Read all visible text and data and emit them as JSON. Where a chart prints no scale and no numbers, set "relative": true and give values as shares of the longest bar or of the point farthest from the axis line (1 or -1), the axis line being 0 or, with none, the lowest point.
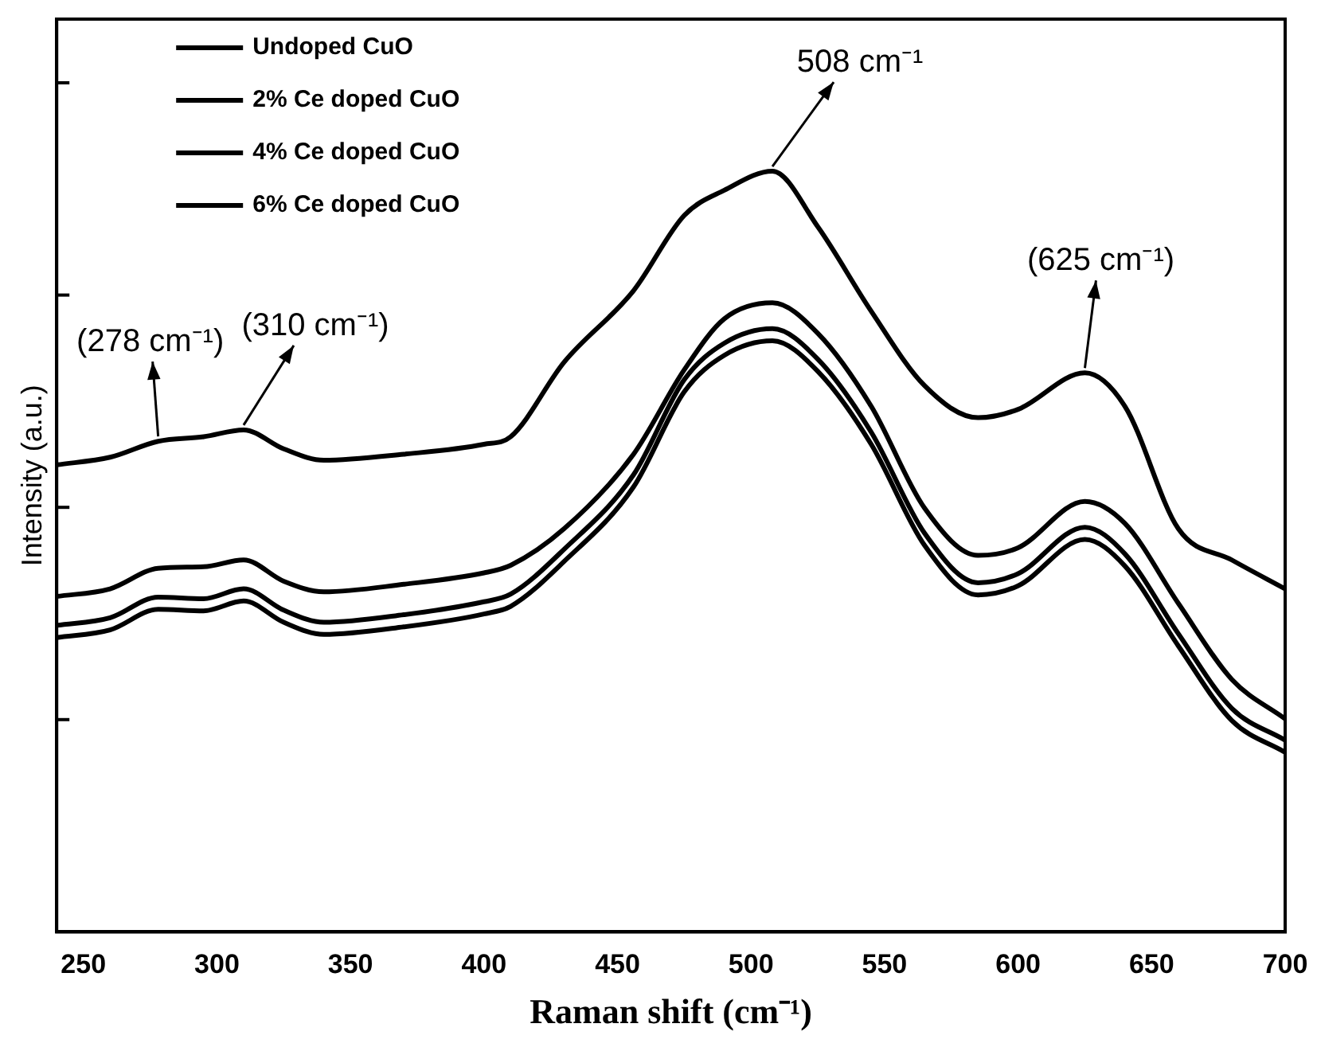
{
  "chart_data": {
    "type": "line",
    "relative": true,
    "xlabel": "Raman shift (cm⁻¹)",
    "ylabel": "Intensity (a.u.)",
    "x": [
      240,
      260,
      278,
      295,
      310,
      325,
      340,
      370,
      400,
      410,
      430,
      456,
      475,
      490,
      508,
      525,
      545,
      565,
      585,
      600,
      625,
      640,
      660,
      680,
      700
    ],
    "xlim": [
      240,
      700
    ],
    "xticks": [
      250,
      300,
      350,
      400,
      450,
      500,
      550,
      600,
      650,
      700
    ],
    "series": [
      {
        "name": "Undoped CuO",
        "color": "#000000",
        "values": [
          0.614,
          0.624,
          0.645,
          0.651,
          0.66,
          0.635,
          0.62,
          0.628,
          0.641,
          0.651,
          0.749,
          0.843,
          0.942,
          0.975,
          1,
          0.927,
          0.816,
          0.718,
          0.676,
          0.687,
          0.735,
          0.691,
          0.53,
          0.489,
          0.451
        ]
      },
      {
        "name": "2% Ce doped CuO",
        "color": "#000000",
        "values": [
          0.441,
          0.451,
          0.478,
          0.48,
          0.489,
          0.461,
          0.447,
          0.457,
          0.472,
          0.482,
          0.53,
          0.628,
          0.739,
          0.806,
          0.827,
          0.787,
          0.691,
          0.557,
          0.495,
          0.505,
          0.566,
          0.537,
          0.432,
          0.332,
          0.28
        ]
      },
      {
        "name": "4% Ce doped CuO",
        "color": "#000000",
        "values": [
          0.403,
          0.413,
          0.44,
          0.438,
          0.451,
          0.423,
          0.407,
          0.417,
          0.434,
          0.444,
          0.503,
          0.601,
          0.726,
          0.774,
          0.793,
          0.753,
          0.657,
          0.524,
          0.459,
          0.471,
          0.532,
          0.497,
          0.392,
          0.294,
          0.252
        ]
      },
      {
        "name": "6% Ce doped CuO",
        "color": "#000000",
        "values": [
          0.387,
          0.397,
          0.424,
          0.422,
          0.435,
          0.407,
          0.391,
          0.401,
          0.418,
          0.428,
          0.487,
          0.585,
          0.71,
          0.758,
          0.777,
          0.737,
          0.641,
          0.508,
          0.443,
          0.455,
          0.516,
          0.481,
          0.376,
          0.278,
          0.236
        ]
      }
    ],
    "annotations": [
      {
        "text": "(278 cm⁻¹)",
        "x": 278,
        "y": 0.645
      },
      {
        "text": "(310 cm⁻¹)",
        "x": 310,
        "y": 0.66
      },
      {
        "text": "508 cm⁻¹",
        "x": 508,
        "y": 1
      },
      {
        "text": "(625 cm⁻¹)",
        "x": 625,
        "y": 0.735
      }
    ],
    "legend": "top left",
    "grid": false,
    "marker": "none",
    "line_style": "solid"
  }
}
